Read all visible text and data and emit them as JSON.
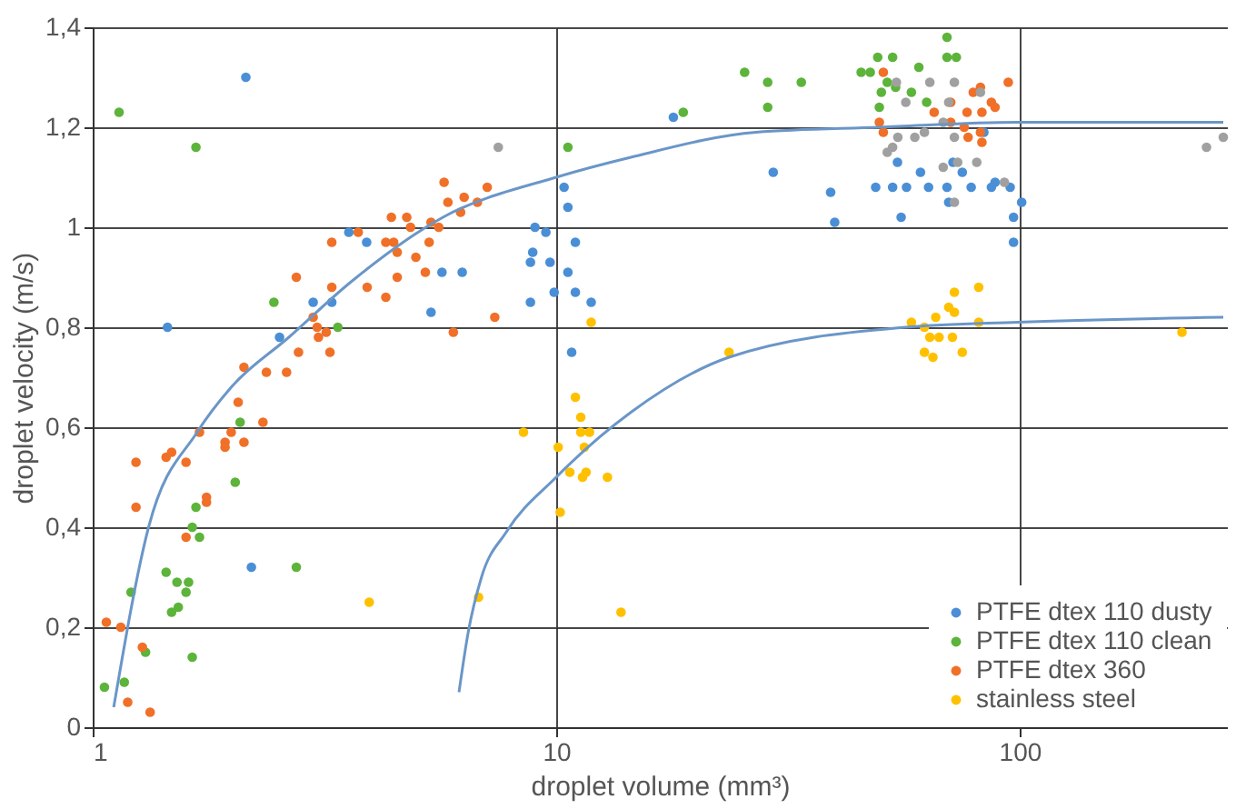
{
  "chart_data": {
    "type": "scatter",
    "xlabel": "droplet volume (mm³)",
    "ylabel": "droplet velocity (m/s)",
    "log": "x",
    "xlim": [
      1,
      280
    ],
    "ylim": [
      0,
      1.4
    ],
    "xticks": [
      1,
      10,
      100
    ],
    "yticks": [
      0,
      {
        "value": 0.2,
        "label": "0,2"
      },
      {
        "value": 0.4,
        "label": "0,4"
      },
      {
        "value": 0.6,
        "label": "0,6"
      },
      {
        "value": 0.8,
        "label": "0,8"
      },
      1,
      {
        "value": 1.2,
        "label": "1,2"
      },
      {
        "value": 1.4,
        "label": "1,4"
      }
    ],
    "grid": true,
    "legend": "bottom right",
    "marker": "circle",
    "series": [
      {
        "name": "PTFE dtex 110 dusty",
        "color": "#4a8fd6",
        "x": [
          2.14,
          1.45,
          3.57,
          3.9,
          5.67,
          6.27,
          5.37,
          3.28,
          2.99,
          2.53,
          10.4,
          10.6,
          9.0,
          9.5,
          8.9,
          8.8,
          9.7,
          10.6,
          11.0,
          8.8,
          9.9,
          11.0,
          11.9,
          10.8,
          2.2,
          17.9,
          29.4,
          39.1,
          39.9,
          48.9,
          53.2,
          57.0,
          61.1,
          63.6,
          69.7,
          70.3,
          71.8,
          75.2,
          78.6,
          86.9,
          88.5,
          95.4,
          101,
          97,
          97,
          55.5,
          54.5,
          83.7
        ],
        "values": [
          1.3,
          0.8,
          0.99,
          0.97,
          0.91,
          0.91,
          0.83,
          0.85,
          0.85,
          0.78,
          1.08,
          1.04,
          1.0,
          0.99,
          0.95,
          0.93,
          0.93,
          0.91,
          0.97,
          0.85,
          0.87,
          0.87,
          0.85,
          0.75,
          0.32,
          1.22,
          1.11,
          1.07,
          1.01,
          1.08,
          1.08,
          1.08,
          1.11,
          1.08,
          1.08,
          1.05,
          1.13,
          1.11,
          1.08,
          1.08,
          1.09,
          1.08,
          1.05,
          1.02,
          0.97,
          1.02,
          1.13,
          1.19
        ]
      },
      {
        "name": "PTFE dtex 110 clean",
        "color": "#5cb43a",
        "x": [
          1.14,
          1.67,
          10.6,
          2.46,
          3.38,
          2.08,
          2.03,
          1.67,
          1.64,
          1.7,
          1.44,
          1.52,
          1.61,
          1.59,
          1.48,
          1.53,
          1.21,
          2.75,
          1.3,
          1.64,
          1.17,
          1.06,
          18.8,
          25.5,
          28.6,
          28.6,
          33.8,
          45.5,
          47.6,
          49.4,
          53.2,
          51.8,
          54,
          50.3,
          49.8,
          58.4,
          60.6,
          63,
          69.7,
          69.7,
          73
        ],
        "values": [
          1.23,
          1.16,
          1.16,
          0.85,
          0.8,
          0.61,
          0.49,
          0.44,
          0.4,
          0.38,
          0.31,
          0.29,
          0.29,
          0.27,
          0.23,
          0.24,
          0.27,
          0.32,
          0.15,
          0.14,
          0.09,
          0.08,
          1.23,
          1.31,
          1.29,
          1.24,
          1.29,
          1.31,
          1.31,
          1.34,
          1.34,
          1.29,
          1.28,
          1.27,
          1.24,
          1.27,
          1.32,
          1.25,
          1.38,
          1.34,
          1.34
        ]
      },
      {
        "name": "PTFE dtex 360",
        "color": "#f07028",
        "x": [
          5.73,
          5.84,
          6.33,
          6.22,
          7.1,
          6.76,
          4.41,
          4.76,
          4.85,
          5.37,
          5.58,
          3.74,
          4.29,
          4.46,
          5.32,
          3.28,
          4.54,
          4.98,
          5.22,
          4.54,
          2.75,
          3.91,
          3.28,
          4.29,
          2.99,
          3.05,
          3.19,
          3.07,
          3.25,
          2.78,
          6.0,
          7.37,
          2.12,
          2.37,
          2.62,
          2.06,
          2.33,
          1.7,
          1.99,
          1.93,
          1.93,
          2.12,
          1.44,
          1.48,
          1.24,
          1.59,
          1.76,
          1.76,
          1.24,
          1.59,
          1.07,
          1.15,
          1.28,
          1.19,
          1.33,
          50.8,
          94.5,
          65.4,
          49.8,
          50.8,
          71,
          77,
          79.4,
          82.3,
          86.9,
          88.5,
          82.9,
          75.9,
          82.3,
          77.4,
          82.9,
          71
        ],
        "values": [
          1.09,
          1.05,
          1.06,
          1.03,
          1.08,
          1.05,
          1.02,
          1.02,
          1.0,
          1.01,
          1.0,
          0.99,
          0.97,
          0.97,
          0.97,
          0.97,
          0.95,
          0.94,
          0.91,
          0.9,
          0.9,
          0.88,
          0.88,
          0.86,
          0.82,
          0.8,
          0.79,
          0.78,
          0.75,
          0.75,
          0.79,
          0.82,
          0.72,
          0.71,
          0.71,
          0.65,
          0.61,
          0.59,
          0.59,
          0.57,
          0.56,
          0.57,
          0.54,
          0.55,
          0.53,
          0.53,
          0.46,
          0.45,
          0.44,
          0.38,
          0.21,
          0.2,
          0.16,
          0.05,
          0.03,
          1.31,
          1.29,
          1.23,
          1.21,
          1.19,
          1.25,
          1.23,
          1.27,
          1.28,
          1.25,
          1.24,
          1.23,
          1.2,
          1.19,
          1.18,
          1.17,
          1.21
        ]
      },
      {
        "color": "#a0a0a0",
        "x": [
          7.5,
          54.2,
          64,
          72.3,
          56.8,
          70.3,
          82.3,
          68.4,
          62.3,
          59.4,
          54.6,
          53.2,
          51.8,
          72.3,
          73.5,
          80.8,
          68.4,
          72.3,
          92.7,
          253,
          275
        ],
        "values": [
          1.16,
          1.29,
          1.29,
          1.29,
          1.25,
          1.25,
          1.27,
          1.21,
          1.19,
          1.18,
          1.18,
          1.16,
          1.15,
          1.18,
          1.13,
          1.13,
          1.12,
          1.05,
          1.09,
          1.16,
          1.18
        ]
      },
      {
        "name": "stainless steel",
        "color": "#ffc000",
        "x": [
          11.0,
          11.3,
          11.3,
          11.8,
          8.5,
          11.5,
          10.1,
          10.7,
          11.6,
          11.4,
          12.9,
          10.2,
          6.8,
          3.95,
          13.8,
          11.9,
          23.6,
          72.3,
          81.6,
          58.4,
          62.3,
          65.9,
          70.3,
          72.3,
          81.6,
          64,
          67,
          71.6,
          62.3,
          75.2,
          65,
          224
        ],
        "values": [
          0.66,
          0.62,
          0.59,
          0.59,
          0.59,
          0.56,
          0.56,
          0.51,
          0.51,
          0.5,
          0.5,
          0.43,
          0.26,
          0.25,
          0.23,
          0.81,
          0.75,
          0.87,
          0.88,
          0.81,
          0.8,
          0.82,
          0.84,
          0.83,
          0.81,
          0.78,
          0.78,
          0.78,
          0.75,
          0.75,
          0.74,
          0.79
        ]
      },
      {
        "type": "line",
        "color": "#6a96c8",
        "marker": "none",
        "x": [
          1.11,
          1.32,
          1.68,
          1.99,
          2.65,
          3.6,
          5.7,
          10,
          14.5,
          27,
          50,
          99,
          275
        ],
        "values": [
          0.04,
          0.4,
          0.59,
          0.68,
          0.78,
          0.89,
          1.02,
          1.1,
          1.14,
          1.19,
          1.2,
          1.21,
          1.21
        ]
      },
      {
        "type": "line",
        "color": "#6a96c8",
        "marker": "none",
        "x": [
          6.17,
          6.46,
          6.9,
          7.8,
          10,
          14.5,
          23.6,
          56.8,
          99,
          275
        ],
        "values": [
          0.07,
          0.19,
          0.3,
          0.39,
          0.5,
          0.63,
          0.74,
          0.8,
          0.81,
          0.82
        ]
      }
    ]
  }
}
